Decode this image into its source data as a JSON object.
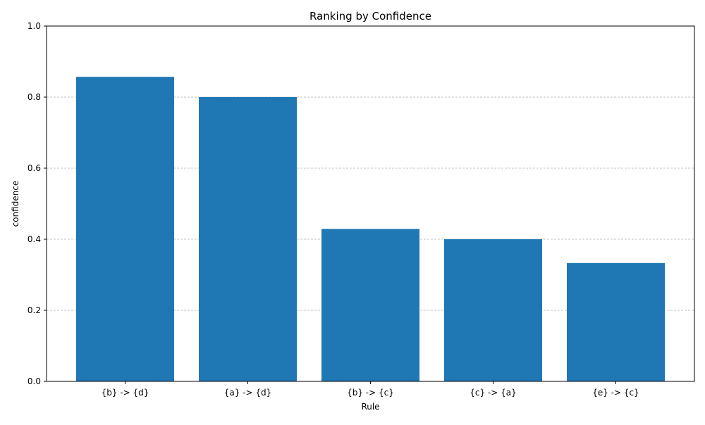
{
  "chart_data": {
    "type": "bar",
    "title": "Ranking by Confidence",
    "xlabel": "Rule",
    "ylabel": "confidence",
    "categories": [
      "{b} -> {d}",
      "{a} -> {d}",
      "{b} -> {c}",
      "{c} -> {a}",
      "{e} -> {c}"
    ],
    "values": [
      0.857,
      0.8,
      0.429,
      0.4,
      0.333
    ],
    "ylim": [
      0,
      1.0
    ],
    "yticks": [
      "0.0",
      "0.2",
      "0.4",
      "0.6",
      "0.8",
      "1.0"
    ],
    "grid": "y-dashed",
    "bar_color": "#1f77b4",
    "grid_color": "#b0b0b0"
  }
}
